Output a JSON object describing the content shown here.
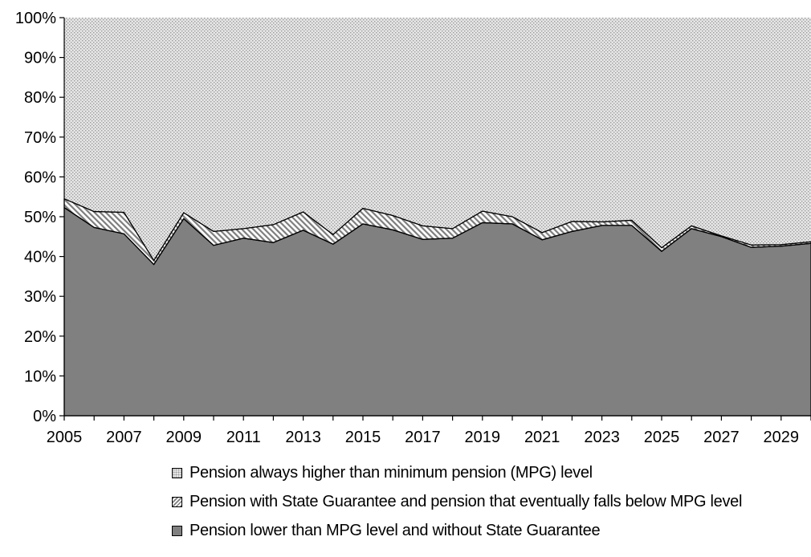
{
  "chart_data": {
    "type": "area",
    "stacked": "percent",
    "x": [
      2005,
      2006,
      2007,
      2008,
      2009,
      2010,
      2011,
      2012,
      2013,
      2014,
      2015,
      2016,
      2017,
      2018,
      2019,
      2020,
      2021,
      2022,
      2023,
      2024,
      2025,
      2026,
      2027,
      2028,
      2029,
      2030
    ],
    "x_tick_labels": [
      "2005",
      "2007",
      "2009",
      "2011",
      "2013",
      "2015",
      "2017",
      "2019",
      "2021",
      "2023",
      "2025",
      "2027",
      "2029"
    ],
    "y_tick_labels": [
      "0%",
      "10%",
      "20%",
      "30%",
      "40%",
      "50%",
      "60%",
      "70%",
      "80%",
      "90%",
      "100%"
    ],
    "ylim": [
      0,
      100
    ],
    "series": [
      {
        "name": "Pension lower than MPG level and without State Guarantee",
        "color": "#808080",
        "pattern": "solid",
        "values": [
          52.3,
          47.3,
          45.7,
          38.0,
          49.5,
          42.8,
          44.6,
          43.5,
          46.6,
          43.1,
          48.2,
          46.7,
          44.3,
          44.6,
          48.5,
          48.2,
          44.2,
          46.3,
          47.8,
          47.8,
          41.3,
          47.0,
          45.0,
          42.3,
          42.6,
          43.3
        ]
      },
      {
        "name": "Pension with State Guarantee and pension that eventually falls below MPG level",
        "color": "#b5b5b5",
        "pattern": "diagonal-hatch",
        "values": [
          2.2,
          4.0,
          5.4,
          1.0,
          1.5,
          3.5,
          2.4,
          4.5,
          4.6,
          2.4,
          3.9,
          3.6,
          3.4,
          2.4,
          2.9,
          1.8,
          1.8,
          2.5,
          0.9,
          1.3,
          0.9,
          0.7,
          0.2,
          0.6,
          0.4,
          0.4
        ]
      },
      {
        "name": "Pension always higher than minimum pension (MPG) level",
        "color": "#d0d0d0",
        "pattern": "dotted",
        "values": [
          45.5,
          48.7,
          48.9,
          61.0,
          49.0,
          53.7,
          53.0,
          52.0,
          48.8,
          54.5,
          47.9,
          49.7,
          52.3,
          53.0,
          48.6,
          50.0,
          54.0,
          51.2,
          51.3,
          50.9,
          57.8,
          52.3,
          54.8,
          57.1,
          57.0,
          56.3
        ]
      }
    ],
    "legend": {
      "position": "bottom",
      "order": [
        2,
        1,
        0
      ]
    },
    "grid": false
  }
}
